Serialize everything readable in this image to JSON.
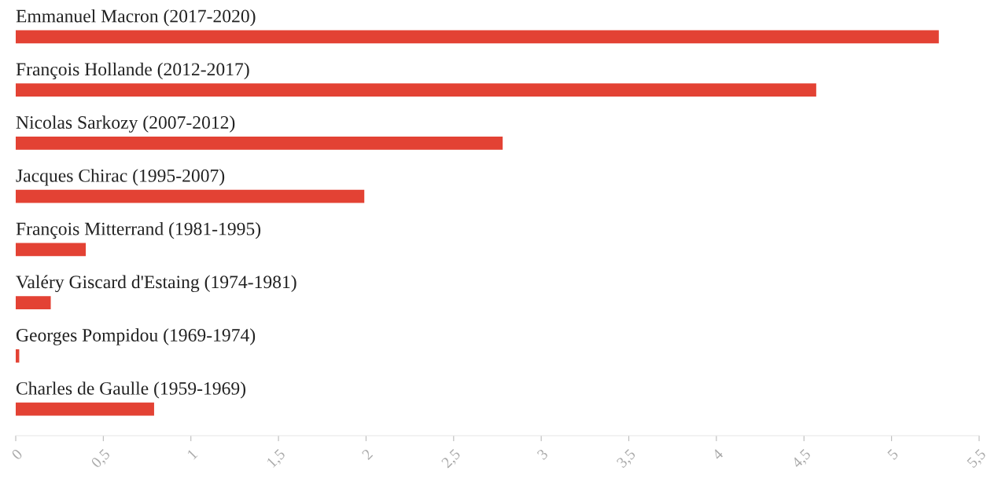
{
  "chart_data": {
    "type": "bar",
    "orientation": "horizontal",
    "categories": [
      "Emmanuel Macron (2017-2020)",
      "François Hollande (2012-2017)",
      "Nicolas Sarkozy (2007-2012)",
      "Jacques Chirac (1995-2007)",
      "François Mitterrand (1981-1995)",
      "Valéry Giscard d'Estaing (1974-1981)",
      "Georges Pompidou (1969-1974)",
      "Charles de Gaulle (1959-1969)"
    ],
    "values": [
      5.27,
      4.57,
      2.78,
      1.99,
      0.4,
      0.2,
      0.02,
      0.79
    ],
    "color": "#e34234",
    "xlim": [
      0,
      5.5
    ],
    "xticks": [
      0,
      {
        "value": 0.5,
        "label": "0,5"
      },
      1,
      {
        "value": 1.5,
        "label": "1,5"
      },
      2,
      {
        "value": 2.5,
        "label": "2,5"
      },
      3,
      {
        "value": 3.5,
        "label": "3,5"
      },
      4,
      {
        "value": 4.5,
        "label": "4,5"
      },
      5,
      {
        "value": 5.5,
        "label": "5,5"
      }
    ],
    "grid": false
  }
}
